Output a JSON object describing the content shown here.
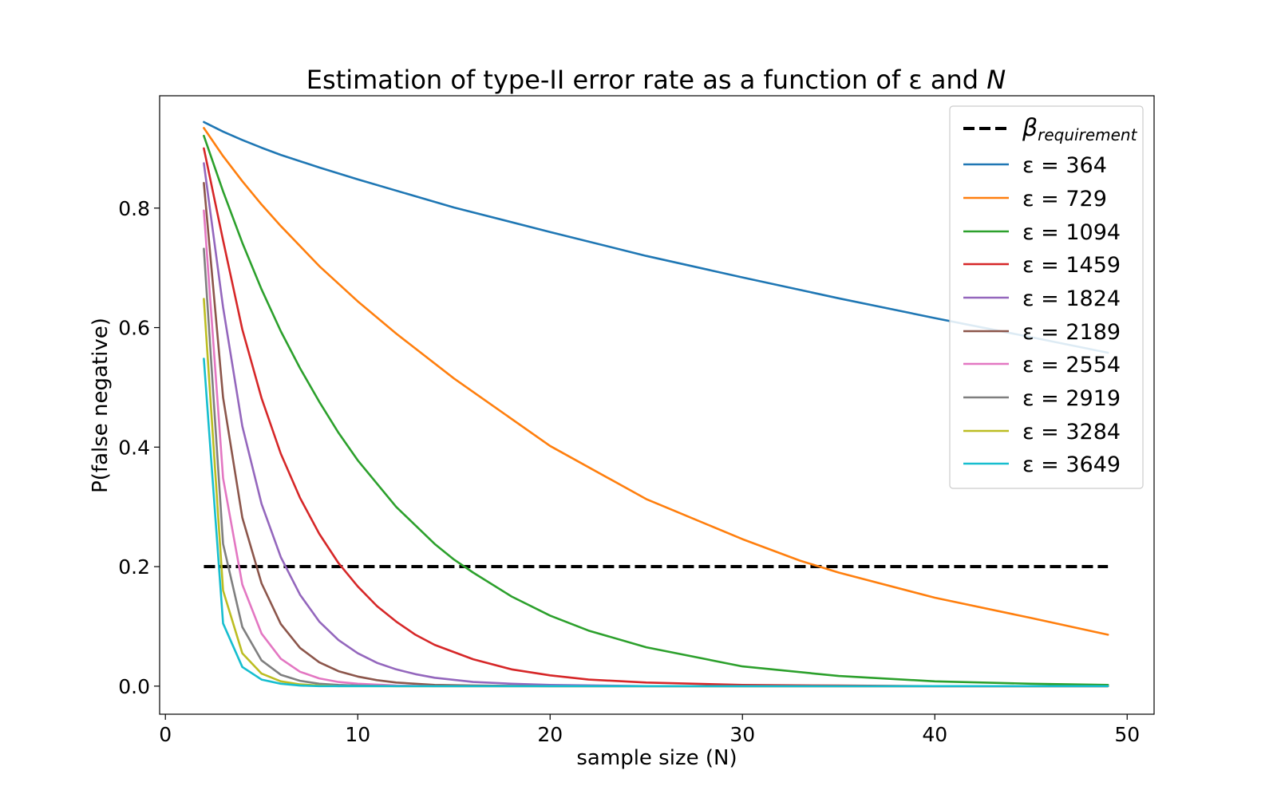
{
  "chart_data": {
    "type": "line",
    "title": "Estimation of type-II error rate as a function of ε and N",
    "xlabel": "sample size (N)",
    "ylabel": "P(false negative)",
    "xlim": [
      -0.3,
      51.4
    ],
    "ylim": [
      -0.047,
      0.988
    ],
    "xticks": [
      0,
      10,
      20,
      30,
      40,
      50
    ],
    "yticks": [
      0.0,
      0.2,
      0.4,
      0.6,
      0.8
    ],
    "xtick_labels": [
      "0",
      "10",
      "20",
      "30",
      "40",
      "50"
    ],
    "ytick_labels": [
      "0.0",
      "0.2",
      "0.4",
      "0.6",
      "0.8"
    ],
    "grid": false,
    "legend_position": "top-right",
    "requirement": {
      "name": "β",
      "name_subscript": "requirement",
      "value": 0.2,
      "x_range": [
        2,
        49
      ],
      "color": "#000000",
      "style": "dashed"
    },
    "series": [
      {
        "name": "ε = 364",
        "color": "#1f77b4",
        "x": [
          2,
          3,
          4,
          5,
          6,
          8,
          10,
          15,
          20,
          25,
          30,
          35,
          40,
          45,
          49
        ],
        "values": [
          0.944,
          0.928,
          0.914,
          0.901,
          0.889,
          0.868,
          0.848,
          0.801,
          0.76,
          0.72,
          0.684,
          0.649,
          0.616,
          0.584,
          0.558
        ]
      },
      {
        "name": "ε = 729",
        "color": "#ff7f0e",
        "x": [
          2,
          3,
          4,
          5,
          6,
          8,
          10,
          12,
          15,
          20,
          25,
          30,
          33,
          35,
          40,
          45,
          49
        ],
        "values": [
          0.934,
          0.887,
          0.845,
          0.806,
          0.77,
          0.703,
          0.644,
          0.59,
          0.515,
          0.402,
          0.313,
          0.246,
          0.21,
          0.19,
          0.148,
          0.114,
          0.086
        ]
      },
      {
        "name": "ε = 1094",
        "color": "#2ca02c",
        "x": [
          2,
          3,
          4,
          5,
          6,
          7,
          8,
          9,
          10,
          12,
          14,
          15,
          16,
          18,
          20,
          22,
          25,
          30,
          35,
          40,
          45,
          49
        ],
        "values": [
          0.921,
          0.828,
          0.742,
          0.664,
          0.594,
          0.532,
          0.476,
          0.424,
          0.378,
          0.3,
          0.238,
          0.212,
          0.19,
          0.15,
          0.118,
          0.093,
          0.065,
          0.033,
          0.017,
          0.008,
          0.004,
          0.002
        ]
      },
      {
        "name": "ε = 1459",
        "color": "#d62728",
        "x": [
          2,
          3,
          4,
          5,
          6,
          7,
          8,
          9,
          10,
          11,
          12,
          13,
          14,
          16,
          18,
          20,
          22,
          25,
          30,
          35,
          40,
          49
        ],
        "values": [
          0.9,
          0.746,
          0.597,
          0.482,
          0.389,
          0.315,
          0.255,
          0.206,
          0.167,
          0.134,
          0.108,
          0.086,
          0.069,
          0.045,
          0.028,
          0.018,
          0.011,
          0.006,
          0.002,
          0.001,
          0.0,
          0.0
        ]
      },
      {
        "name": "ε = 1824",
        "color": "#9467bd",
        "x": [
          2,
          3,
          4,
          5,
          6,
          7,
          8,
          9,
          10,
          11,
          12,
          13,
          14,
          16,
          18,
          20,
          25,
          30,
          49
        ],
        "values": [
          0.875,
          0.634,
          0.435,
          0.305,
          0.216,
          0.153,
          0.108,
          0.077,
          0.055,
          0.039,
          0.028,
          0.02,
          0.014,
          0.007,
          0.004,
          0.002,
          0.0,
          0.0,
          0.0
        ]
      },
      {
        "name": "ε = 2189",
        "color": "#8c564b",
        "x": [
          2,
          3,
          4,
          5,
          6,
          7,
          8,
          9,
          10,
          11,
          12,
          14,
          16,
          20,
          49
        ],
        "values": [
          0.842,
          0.483,
          0.282,
          0.172,
          0.104,
          0.064,
          0.04,
          0.025,
          0.016,
          0.01,
          0.006,
          0.002,
          0.001,
          0.0,
          0.0
        ]
      },
      {
        "name": "ε = 2554",
        "color": "#e377c2",
        "x": [
          2,
          3,
          4,
          5,
          6,
          7,
          8,
          9,
          10,
          12,
          14,
          20,
          49
        ],
        "values": [
          0.796,
          0.348,
          0.17,
          0.088,
          0.046,
          0.024,
          0.013,
          0.007,
          0.004,
          0.001,
          0.0,
          0.0,
          0.0
        ]
      },
      {
        "name": "ε = 2919",
        "color": "#7f7f7f",
        "x": [
          2,
          3,
          4,
          5,
          6,
          7,
          8,
          9,
          10,
          12,
          20,
          49
        ],
        "values": [
          0.732,
          0.238,
          0.099,
          0.043,
          0.019,
          0.009,
          0.004,
          0.002,
          0.001,
          0.0,
          0.0,
          0.0
        ]
      },
      {
        "name": "ε = 3284",
        "color": "#bcbd22",
        "x": [
          2,
          3,
          4,
          5,
          6,
          7,
          8,
          9,
          10,
          20,
          49
        ],
        "values": [
          0.648,
          0.16,
          0.055,
          0.021,
          0.008,
          0.003,
          0.001,
          0.0,
          0.0,
          0.0,
          0.0
        ]
      },
      {
        "name": "ε = 3649",
        "color": "#17becf",
        "x": [
          2,
          3,
          4,
          5,
          6,
          7,
          8,
          9,
          10,
          20,
          49
        ],
        "values": [
          0.548,
          0.105,
          0.032,
          0.011,
          0.004,
          0.001,
          0.0,
          0.0,
          0.0,
          0.0,
          0.0
        ]
      }
    ]
  }
}
